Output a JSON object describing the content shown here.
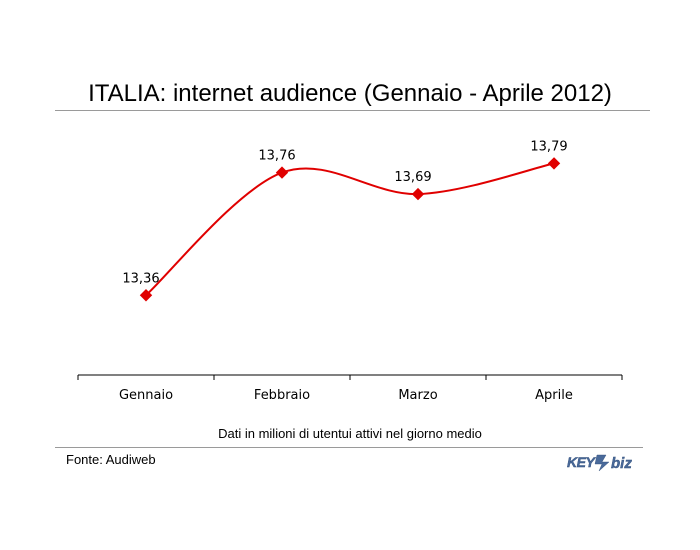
{
  "title": "ITALIA: internet audience (Gennaio - Aprile 2012)",
  "xlabel": "Dati in milioni di utentui attivi nel giorno medio",
  "source": "Fonte: Audiweb",
  "logo": {
    "text_left": "KEY",
    "text_right": "biz",
    "digit": "4"
  },
  "colors": {
    "series": "#e00000",
    "axis": "#000000",
    "rule": "#9a9a9a",
    "logo": "#4a6a9a"
  },
  "chart_data": {
    "type": "line",
    "title": "ITALIA: internet audience (Gennaio - Aprile 2012)",
    "xlabel": "Dati in milioni di utentui attivi nel giorno medio",
    "ylabel": "",
    "categories": [
      "Gennaio",
      "Febbraio",
      "Marzo",
      "Aprile"
    ],
    "series": [
      {
        "values": [
          13.36,
          13.76,
          13.69,
          13.79
        ],
        "labels": [
          "13,36",
          "13,76",
          "13,69",
          "13,79"
        ],
        "smooth": true,
        "marker": "diamond"
      }
    ],
    "ylim": [
      13.1,
      13.85
    ],
    "grid": false,
    "legend": "none"
  }
}
